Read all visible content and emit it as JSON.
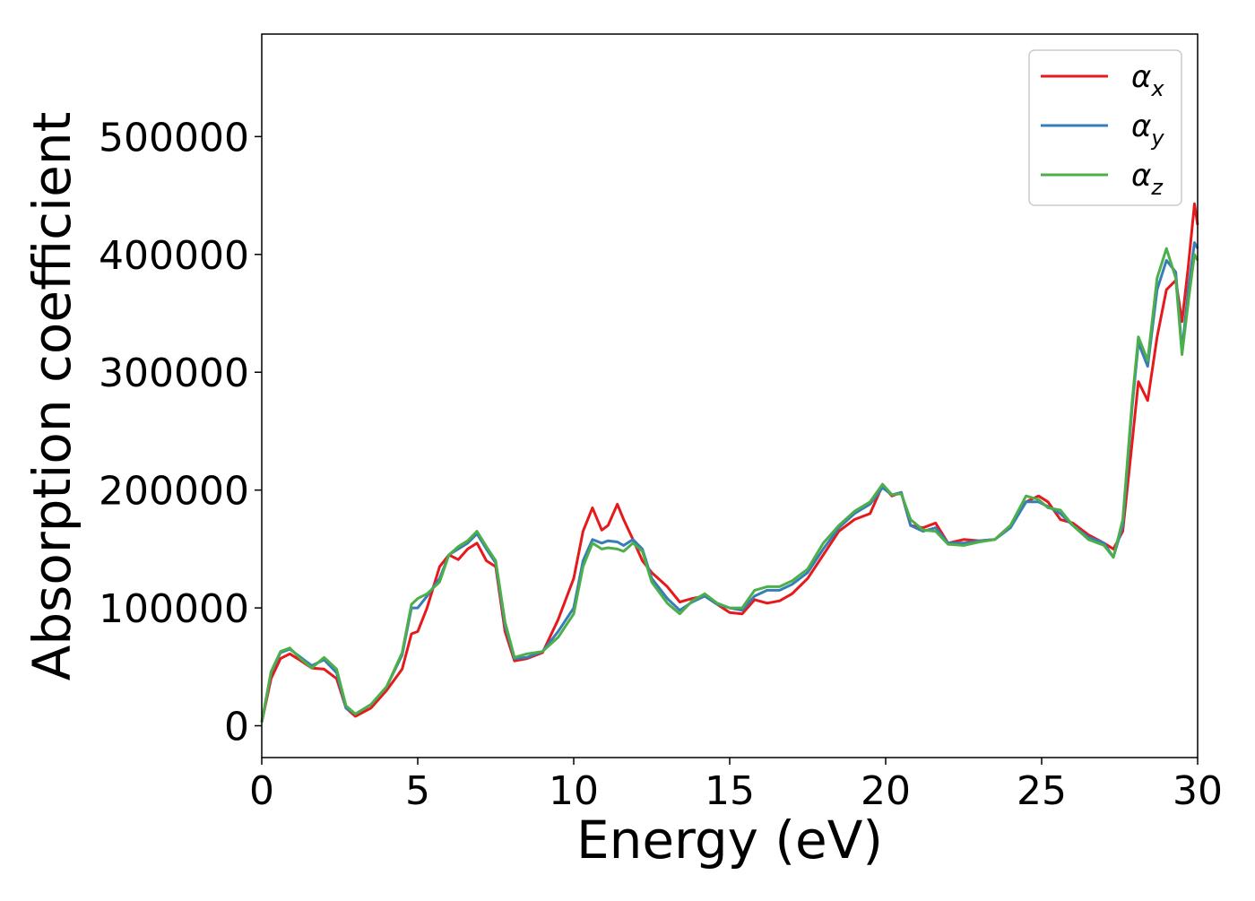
{
  "chart_data": {
    "type": "line",
    "title": "",
    "xlabel": "Energy (eV)",
    "ylabel": "Absorption coefficient",
    "xlim": [
      0,
      30
    ],
    "ylim": [
      -27000,
      587000
    ],
    "xticks": [
      0,
      5,
      10,
      15,
      20,
      25,
      30
    ],
    "xtick_labels": [
      "0",
      "5",
      "10",
      "15",
      "20",
      "25",
      "30"
    ],
    "yticks": [
      0,
      100000,
      200000,
      300000,
      400000,
      500000
    ],
    "ytick_labels": [
      "0",
      "100000",
      "200000",
      "300000",
      "400000",
      "500000"
    ],
    "grid": false,
    "legend_position": "top-right",
    "series": [
      {
        "name": "αx",
        "legend_main": "α",
        "legend_sub": "x",
        "color": "#e41a1c",
        "x": [
          0,
          0.3,
          0.6,
          0.9,
          1.2,
          1.6,
          2.0,
          2.4,
          2.7,
          3.0,
          3.5,
          4.0,
          4.5,
          4.8,
          5.0,
          5.3,
          5.7,
          6.0,
          6.3,
          6.6,
          6.9,
          7.2,
          7.5,
          7.8,
          8.1,
          8.5,
          9.0,
          9.5,
          10.0,
          10.3,
          10.6,
          10.9,
          11.1,
          11.4,
          11.6,
          11.9,
          12.2,
          12.5,
          13.0,
          13.4,
          13.8,
          14.2,
          14.6,
          15.0,
          15.4,
          15.8,
          16.2,
          16.6,
          17.0,
          17.5,
          18.0,
          18.5,
          19.0,
          19.5,
          19.9,
          20.2,
          20.5,
          20.8,
          21.2,
          21.6,
          22.0,
          22.5,
          23.0,
          23.5,
          24.0,
          24.5,
          24.9,
          25.2,
          25.6,
          26.0,
          26.5,
          27.0,
          27.3,
          27.6,
          27.9,
          28.1,
          28.4,
          28.7,
          29.0,
          29.3,
          29.5,
          29.7,
          29.9,
          30.0
        ],
        "y": [
          3000,
          40000,
          57000,
          61000,
          56000,
          49000,
          48000,
          40000,
          15000,
          8000,
          15000,
          30000,
          48000,
          78000,
          80000,
          100000,
          135000,
          145000,
          141000,
          150000,
          155000,
          140000,
          135000,
          80000,
          55000,
          57000,
          62000,
          90000,
          125000,
          165000,
          185000,
          166000,
          170000,
          188000,
          175000,
          158000,
          140000,
          130000,
          118000,
          105000,
          108000,
          110000,
          103000,
          96000,
          95000,
          107000,
          104000,
          106000,
          112000,
          125000,
          145000,
          165000,
          175000,
          180000,
          204000,
          195000,
          198000,
          170000,
          168000,
          172000,
          155000,
          158000,
          157000,
          158000,
          170000,
          190000,
          195000,
          190000,
          175000,
          172000,
          162000,
          155000,
          150000,
          165000,
          240000,
          292000,
          276000,
          330000,
          370000,
          378000,
          343000,
          390000,
          443000,
          425000
        ]
      },
      {
        "name": "αy",
        "legend_main": "α",
        "legend_sub": "y",
        "color": "#377eb8",
        "x": [
          0,
          0.3,
          0.6,
          0.9,
          1.2,
          1.6,
          2.0,
          2.4,
          2.7,
          3.0,
          3.5,
          4.0,
          4.5,
          4.8,
          5.0,
          5.3,
          5.7,
          6.0,
          6.3,
          6.6,
          6.9,
          7.2,
          7.5,
          7.8,
          8.1,
          8.5,
          9.0,
          9.5,
          10.0,
          10.3,
          10.6,
          10.9,
          11.1,
          11.4,
          11.6,
          11.9,
          12.2,
          12.5,
          13.0,
          13.4,
          13.8,
          14.2,
          14.6,
          15.0,
          15.4,
          15.8,
          16.2,
          16.6,
          17.0,
          17.5,
          18.0,
          18.5,
          19.0,
          19.5,
          19.9,
          20.2,
          20.5,
          20.8,
          21.2,
          21.6,
          22.0,
          22.5,
          23.0,
          23.5,
          24.0,
          24.5,
          24.9,
          25.2,
          25.6,
          26.0,
          26.5,
          27.0,
          27.3,
          27.6,
          27.9,
          28.1,
          28.4,
          28.7,
          29.0,
          29.3,
          29.5,
          29.7,
          29.9,
          30.0
        ],
        "y": [
          3000,
          45000,
          62000,
          65000,
          59000,
          51000,
          56000,
          45000,
          15000,
          10000,
          18000,
          33000,
          60000,
          100000,
          100000,
          110000,
          125000,
          145000,
          150000,
          155000,
          163000,
          150000,
          138000,
          85000,
          57000,
          58000,
          63000,
          80000,
          100000,
          140000,
          158000,
          155000,
          157000,
          156000,
          153000,
          158000,
          150000,
          125000,
          108000,
          98000,
          105000,
          110000,
          103000,
          100000,
          98000,
          110000,
          115000,
          115000,
          120000,
          130000,
          150000,
          168000,
          180000,
          188000,
          202000,
          196000,
          198000,
          170000,
          165000,
          168000,
          155000,
          155000,
          157000,
          158000,
          168000,
          190000,
          190000,
          186000,
          180000,
          170000,
          160000,
          155000,
          143000,
          170000,
          270000,
          325000,
          305000,
          370000,
          395000,
          385000,
          318000,
          370000,
          410000,
          405000
        ]
      },
      {
        "name": "αz",
        "legend_main": "α",
        "legend_sub": "z",
        "color": "#4daf4a",
        "x": [
          0,
          0.3,
          0.6,
          0.9,
          1.2,
          1.6,
          2.0,
          2.4,
          2.7,
          3.0,
          3.5,
          4.0,
          4.5,
          4.8,
          5.0,
          5.3,
          5.7,
          6.0,
          6.3,
          6.6,
          6.9,
          7.2,
          7.5,
          7.8,
          8.1,
          8.5,
          9.0,
          9.5,
          10.0,
          10.3,
          10.6,
          10.9,
          11.1,
          11.4,
          11.6,
          11.9,
          12.2,
          12.5,
          13.0,
          13.4,
          13.8,
          14.2,
          14.6,
          15.0,
          15.4,
          15.8,
          16.2,
          16.6,
          17.0,
          17.5,
          18.0,
          18.5,
          19.0,
          19.5,
          19.9,
          20.2,
          20.5,
          20.8,
          21.2,
          21.6,
          22.0,
          22.5,
          23.0,
          23.5,
          24.0,
          24.5,
          24.9,
          25.2,
          25.6,
          26.0,
          26.5,
          27.0,
          27.3,
          27.6,
          27.9,
          28.1,
          28.4,
          28.7,
          29.0,
          29.3,
          29.5,
          29.7,
          29.9,
          30.0
        ],
        "y": [
          3000,
          46000,
          63000,
          66000,
          58000,
          49000,
          58000,
          48000,
          17000,
          10000,
          18000,
          33000,
          62000,
          103000,
          108000,
          112000,
          122000,
          145000,
          152000,
          157000,
          165000,
          152000,
          140000,
          88000,
          58000,
          61000,
          63000,
          75000,
          95000,
          135000,
          155000,
          150000,
          151000,
          150000,
          148000,
          155000,
          148000,
          122000,
          104000,
          95000,
          106000,
          112000,
          104000,
          100000,
          100000,
          115000,
          118000,
          118000,
          123000,
          133000,
          155000,
          170000,
          182000,
          190000,
          205000,
          196000,
          197000,
          175000,
          166000,
          165000,
          154000,
          153000,
          156000,
          158000,
          170000,
          195000,
          192000,
          185000,
          183000,
          170000,
          158000,
          153000,
          143000,
          175000,
          275000,
          330000,
          310000,
          380000,
          405000,
          380000,
          315000,
          360000,
          400000,
          395000
        ]
      }
    ]
  }
}
